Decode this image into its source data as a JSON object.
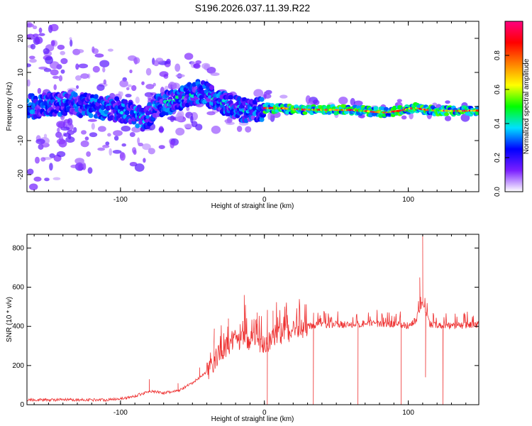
{
  "chart_data": [
    {
      "type": "heatmap",
      "title": "S196.2026.037.11.39.R22",
      "xlabel": "Height of straight line (km)",
      "ylabel": "Frequency (Hz)",
      "xlim": [
        -165,
        149
      ],
      "ylim": [
        -25,
        25
      ],
      "xticks": [
        -100,
        0,
        100
      ],
      "yticks": [
        -20,
        -10,
        0,
        10,
        20
      ],
      "ridge": {
        "x": [
          -160,
          -140,
          -120,
          -100,
          -90,
          -83,
          -75,
          -65,
          -55,
          -45,
          -35,
          -25,
          -15,
          -10,
          0,
          10,
          20,
          40,
          60,
          75,
          85,
          95,
          105,
          110,
          120,
          135,
          149
        ],
        "y": [
          0,
          1,
          0,
          -1,
          -2,
          -4,
          0,
          1.5,
          3,
          4.5,
          2.5,
          0.5,
          -1,
          -1.5,
          -0.5,
          -0.5,
          -0.8,
          -1,
          -1,
          -1.5,
          -1.8,
          -1.2,
          -0.3,
          -0.8,
          -1.2,
          -1.3,
          -1.2
        ]
      },
      "colorbar": {
        "label": "Normalized spectral amplitude",
        "ticks": [
          0.0,
          0.2,
          0.4,
          0.6,
          0.8
        ],
        "tick_labels": [
          "0.0",
          "0.2",
          "0.4",
          "0.6",
          "0.8"
        ],
        "range": [
          0,
          1
        ],
        "colors": [
          "#ffffff",
          "#7a1fff",
          "#0000ff",
          "#00e0ff",
          "#00ff00",
          "#ffff00",
          "#ff8000",
          "#ff0000",
          "#ff0080"
        ]
      }
    },
    {
      "type": "line",
      "title": "",
      "xlabel": "Height of straight line (km)",
      "ylabel": "SNR (10 * v/v)",
      "xlim": [
        -165,
        149
      ],
      "ylim": [
        0,
        870
      ],
      "xticks": [
        -100,
        0,
        100
      ],
      "yticks": [
        0,
        200,
        400,
        600,
        800
      ],
      "series": [
        {
          "name": "SNR",
          "color": "#ee3333",
          "envelope": {
            "x": [
              -165,
              -110,
              -95,
              -85,
              -80,
              -70,
              -60,
              -50,
              -40,
              -30,
              -20,
              -10,
              0,
              10,
              20,
              30,
              40,
              60,
              80,
              100,
              105,
              110,
              115,
              130,
              149
            ],
            "y": [
              25,
              25,
              35,
              55,
              70,
              60,
              70,
              110,
              170,
              270,
              330,
              330,
              310,
              360,
              380,
              400,
              410,
              410,
              415,
              405,
              430,
              520,
              410,
              400,
              410
            ]
          },
          "spikes": [
            {
              "x": -80,
              "y": 130
            },
            {
              "x": -60,
              "y": 110
            },
            {
              "x": -45,
              "y": 190
            },
            {
              "x": -35,
              "y": 320
            },
            {
              "x": -25,
              "y": 440
            },
            {
              "x": -14,
              "y": 560
            },
            {
              "x": -5,
              "y": 470
            },
            {
              "x": 2,
              "y": 0
            },
            {
              "x": 6,
              "y": 480
            },
            {
              "x": 34,
              "y": 0
            },
            {
              "x": 65,
              "y": 0
            },
            {
              "x": 95,
              "y": 0
            },
            {
              "x": 108,
              "y": 650
            },
            {
              "x": 110,
              "y": 870
            },
            {
              "x": 112,
              "y": 140
            },
            {
              "x": 124,
              "y": 0
            }
          ]
        }
      ]
    }
  ]
}
